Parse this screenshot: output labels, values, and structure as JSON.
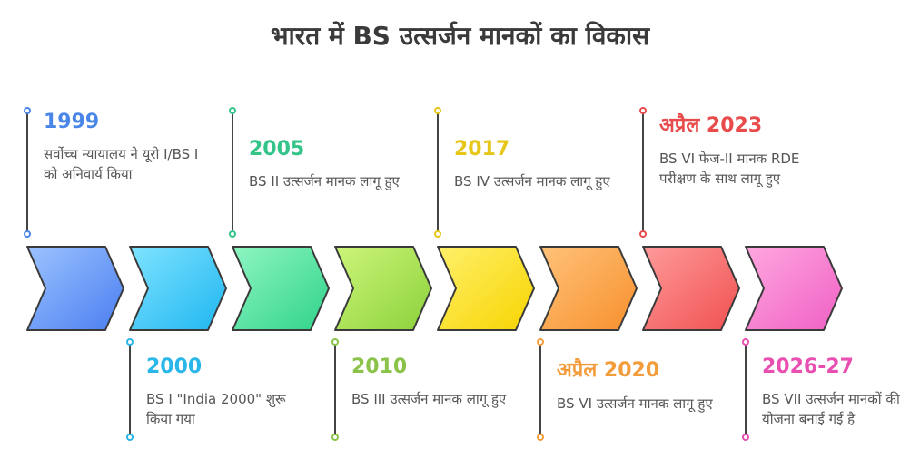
{
  "title": "भारत में BS उत्सर्जन मानकों का विकास",
  "colors": {
    "blue": "#4a86e8",
    "cyan": "#29b6e8",
    "green": "#34c48a",
    "lime": "#8bc34a",
    "yellow": "#e6c619",
    "orange": "#f39c3c",
    "red": "#e84b4b",
    "pink": "#e94fb0"
  },
  "events": [
    {
      "year": "1999",
      "desc": "सर्वोच्च न्यायालय ने यूरो I/BS I को अनिवार्य किया",
      "color": "#4a86e8"
    },
    {
      "year": "2000",
      "desc": "BS I \"India 2000\" शुरू किया गया",
      "color": "#29b6e8"
    },
    {
      "year": "2005",
      "desc": "BS II उत्सर्जन मानक लागू हुए",
      "color": "#34c48a"
    },
    {
      "year": "2010",
      "desc": "BS III उत्सर्जन मानक लागू हुए",
      "color": "#8bc34a"
    },
    {
      "year": "2017",
      "desc": "BS IV उत्सर्जन मानक लागू हुए",
      "color": "#e6c619"
    },
    {
      "year": "अप्रैल 2020",
      "desc": "BS VI उत्सर्जन मानक लागू हुए",
      "color": "#f39c3c"
    },
    {
      "year": "अप्रैल 2023",
      "desc": "BS VI फेज-II मानक RDE परीक्षण के साथ लागू हुए",
      "color": "#e84b4b"
    },
    {
      "year": "2026-27",
      "desc": "BS VII उत्सर्जन मानकों की योजना बनाई गई है",
      "color": "#e94fb0"
    }
  ]
}
